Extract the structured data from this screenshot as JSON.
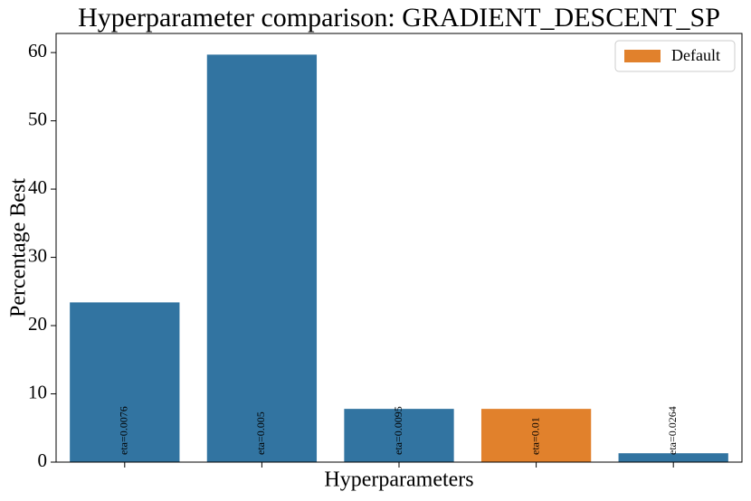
{
  "chart_data": {
    "type": "bar",
    "title": "Hyperparameter comparison: GRADIENT_DESCENT_SP",
    "x_label": "Hyperparameters",
    "y_label": "Percentage Best",
    "categories": [
      "eta=0.0076",
      "eta=0.005",
      "eta=0.0095",
      "eta=0.01",
      "eta=0.0264"
    ],
    "values": [
      23.4,
      59.7,
      7.8,
      7.8,
      1.3
    ],
    "colors": [
      "#3274a1",
      "#3274a1",
      "#3274a1",
      "#e1812c",
      "#3274a1"
    ],
    "ylim": [
      0,
      62.8
    ],
    "yticks": [
      0,
      10,
      20,
      30,
      40,
      50,
      60
    ],
    "legend": {
      "label": "Default",
      "color": "#e1812c",
      "position": "upper right"
    }
  }
}
